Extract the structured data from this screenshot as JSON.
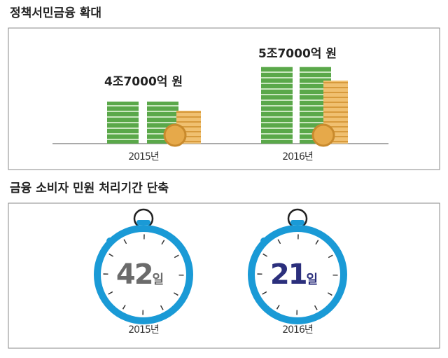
{
  "sections": [
    {
      "title": "정책서민금융 확대",
      "items": [
        {
          "label": "4조7000억 원",
          "year": "2015년"
        },
        {
          "label": "5조7000억 원",
          "year": "2016년"
        }
      ]
    },
    {
      "title": "금융 소비자 민원 처리기간 단축",
      "items": [
        {
          "number": "42",
          "unit": "일",
          "year": "2015년"
        },
        {
          "number": "21",
          "unit": "일",
          "year": "2016년"
        }
      ]
    }
  ]
}
